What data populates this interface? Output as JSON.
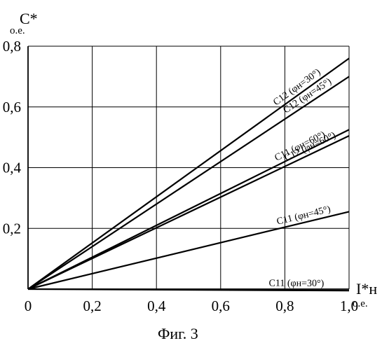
{
  "chart_data": {
    "type": "line",
    "y_axis_title": "C*",
    "y_axis_unit": "о.е.",
    "x_axis_title": "I*н",
    "x_axis_unit": "о.е.",
    "xlim": [
      0,
      1.0
    ],
    "ylim": [
      0,
      0.8
    ],
    "x_ticks": [
      0,
      0.2,
      0.4,
      0.6,
      0.8,
      1.0
    ],
    "y_ticks": [
      0,
      0.2,
      0.4,
      0.6,
      0.8
    ],
    "x_tick_labels": [
      "0",
      "0,2",
      "0,4",
      "0,6",
      "0,8",
      "1,0"
    ],
    "y_tick_labels": [
      "",
      "0,2",
      "0,4",
      "0,6",
      "0,8"
    ],
    "grid": true,
    "series": [
      {
        "label": "C12 (φн=30°)",
        "x": [
          0,
          1.0
        ],
        "y": [
          0,
          0.76
        ]
      },
      {
        "label": "C12 (φн=45°)",
        "x": [
          0,
          1.0
        ],
        "y": [
          0,
          0.7
        ]
      },
      {
        "label": "C11 (φн=60°)",
        "x": [
          0,
          1.0
        ],
        "y": [
          0,
          0.525
        ]
      },
      {
        "label": "C12 (φн=60°)",
        "x": [
          0,
          1.0
        ],
        "y": [
          0,
          0.505
        ]
      },
      {
        "label": "C11 (φн=45°)",
        "x": [
          0,
          1.0
        ],
        "y": [
          0,
          0.255
        ]
      },
      {
        "label": "C11 (φн=30°)",
        "x": [
          0,
          1.0
        ],
        "y": [
          0,
          -0.005
        ]
      }
    ]
  },
  "caption": "Фиг. 3"
}
